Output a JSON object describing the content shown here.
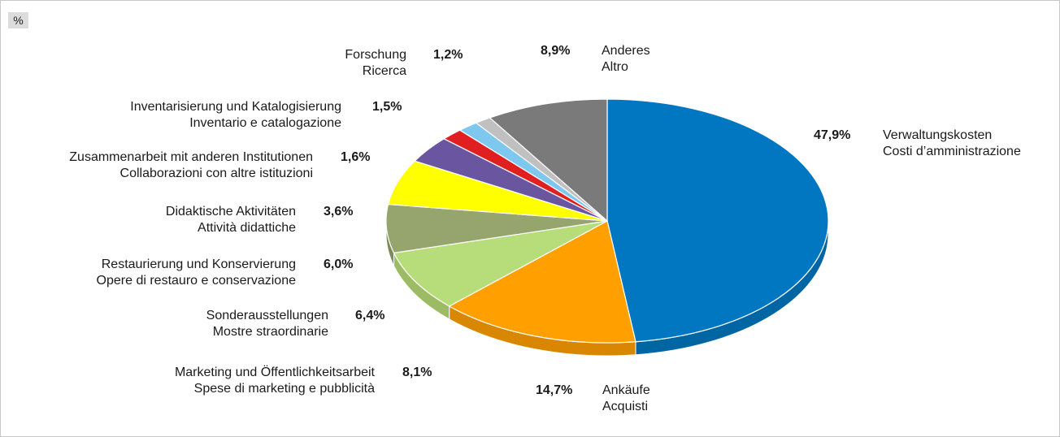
{
  "unit_label": "%",
  "chart_data": {
    "type": "pie",
    "slices": [
      {
        "label_de": "Verwaltungskosten",
        "label_it": "Costi d’amministrazione",
        "value": 47.9,
        "pct_text": "47,9%",
        "color": "#0077c0",
        "side": "#0065a3"
      },
      {
        "label_de": "Ankäufe",
        "label_it": "Acquisti",
        "value": 14.7,
        "pct_text": "14,7%",
        "color": "#ff9f00",
        "side": "#d98700"
      },
      {
        "label_de": "Marketing und Öffentlichkeitsarbeit",
        "label_it": "Spese di marketing e pubblicità",
        "value": 8.1,
        "pct_text": "8,1%",
        "color": "#b7dc7a",
        "side": "#9bbb64"
      },
      {
        "label_de": "Sonderausstellungen",
        "label_it": "Mostre straordinarie",
        "value": 6.4,
        "pct_text": "6,4%",
        "color": "#95a56d",
        "side": "#7e8c5b"
      },
      {
        "label_de": "Restaurierung und Konservierung",
        "label_it": "Opere di restauro e conservazione",
        "value": 6.0,
        "pct_text": "6,0%",
        "color": "#ffff00",
        "side": "#d9d900"
      },
      {
        "label_de": "Didaktische Aktivitäten",
        "label_it": "Attività didattiche",
        "value": 3.6,
        "pct_text": "3,6%",
        "color": "#6a56a0",
        "side": "#594887"
      },
      {
        "label_de": "Zusammenarbeit mit anderen Institutionen",
        "label_it": "Collaborazioni con altre istituzioni",
        "value": 1.6,
        "pct_text": "1,6%",
        "color": "#e02020",
        "side": "#bd1a1a"
      },
      {
        "label_de": "Inventarisierung und Katalogisierung",
        "label_it": "Inventario e catalogazione",
        "value": 1.5,
        "pct_text": "1,5%",
        "color": "#7ec8f0",
        "side": "#6aa9cc"
      },
      {
        "label_de": "Forschung",
        "label_it": "Ricerca",
        "value": 1.2,
        "pct_text": "1,2%",
        "color": "#c0c0c0",
        "side": "#a3a3a3"
      },
      {
        "label_de": "Anderes",
        "label_it": "Altro",
        "value": 8.9,
        "pct_text": "8,9%",
        "color": "#7a7a7a",
        "side": "#666666"
      }
    ]
  }
}
